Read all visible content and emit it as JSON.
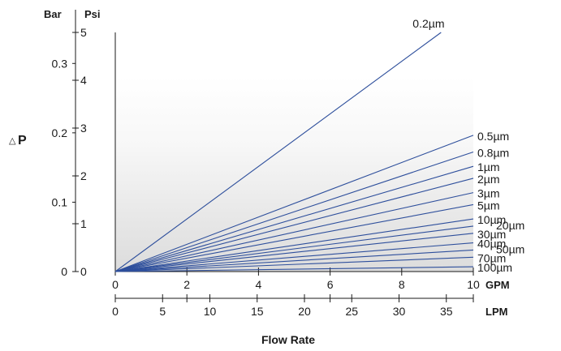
{
  "chart_data": {
    "type": "line",
    "title": "",
    "ylabel": "P",
    "ylabel_symbol": "△",
    "xlabel": "Flow Rate",
    "y_axes": [
      {
        "unit": "Psi",
        "ticks": [
          "0",
          "1",
          "2",
          "3",
          "4",
          "5"
        ],
        "range": [
          0,
          5
        ]
      },
      {
        "unit": "Bar",
        "ticks": [
          "0",
          "0.1",
          "0.2",
          "0.3"
        ],
        "tick_values": [
          0,
          0.1,
          0.2,
          0.3
        ]
      }
    ],
    "x_axes": [
      {
        "unit": "GPM",
        "ticks": [
          "0",
          "2",
          "4",
          "6",
          "8",
          "10"
        ],
        "range": [
          0,
          10
        ]
      },
      {
        "unit": "LPM",
        "ticks": [
          "0",
          "5",
          "10",
          "15",
          "20",
          "25",
          "30",
          "35"
        ],
        "tick_values": [
          0,
          5,
          10,
          15,
          20,
          25,
          30,
          35
        ]
      }
    ],
    "series_x_unit": "GPM",
    "series_y_unit": "Psi",
    "series": [
      {
        "name": "0.2µm",
        "x": [
          0,
          9.1
        ],
        "y": [
          0,
          5.0
        ]
      },
      {
        "name": "0.5µm",
        "x": [
          0,
          10
        ],
        "y": [
          0,
          2.85
        ]
      },
      {
        "name": "0.8µm",
        "x": [
          0,
          10
        ],
        "y": [
          0,
          2.5
        ]
      },
      {
        "name": "1µm",
        "x": [
          0,
          10
        ],
        "y": [
          0,
          2.2
        ]
      },
      {
        "name": "2µm",
        "x": [
          0,
          10
        ],
        "y": [
          0,
          1.95
        ]
      },
      {
        "name": "3µm",
        "x": [
          0,
          10
        ],
        "y": [
          0,
          1.65
        ]
      },
      {
        "name": "5µm",
        "x": [
          0,
          10
        ],
        "y": [
          0,
          1.4
        ]
      },
      {
        "name": "10µm",
        "x": [
          0,
          10
        ],
        "y": [
          0,
          1.1
        ]
      },
      {
        "name": "20µm",
        "x": [
          0,
          10
        ],
        "y": [
          0,
          0.95
        ]
      },
      {
        "name": "30µm",
        "x": [
          0,
          10
        ],
        "y": [
          0,
          0.8
        ]
      },
      {
        "name": "40µm",
        "x": [
          0,
          10
        ],
        "y": [
          0,
          0.6
        ]
      },
      {
        "name": "50µm",
        "x": [
          0,
          10
        ],
        "y": [
          0,
          0.45
        ]
      },
      {
        "name": "70µm",
        "x": [
          0,
          10
        ],
        "y": [
          0,
          0.3
        ]
      },
      {
        "name": "100µm",
        "x": [
          0,
          10
        ],
        "y": [
          0,
          0.1
        ]
      }
    ],
    "grid": false,
    "background": "vertical gradient, light gray at bottom to white",
    "line_color": "#2e4f9c"
  }
}
